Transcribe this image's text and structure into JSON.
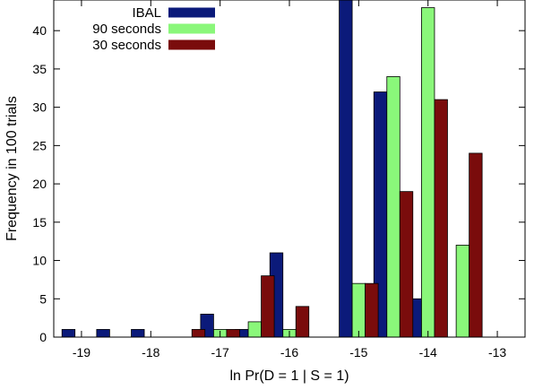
{
  "chart_data": {
    "type": "bar",
    "xlabel": "ln Pr(D = 1 | S = 1)",
    "ylabel": "Frequency in 100 trials",
    "ylim": [
      0,
      44
    ],
    "xlim": [
      -19.4,
      -12.6
    ],
    "x_ticks": [
      {
        "value": -19,
        "label": "-19"
      },
      {
        "value": -18,
        "label": "-18"
      },
      {
        "value": -17,
        "label": "-17"
      },
      {
        "value": -16,
        "label": "-16"
      },
      {
        "value": -15,
        "label": "-15"
      },
      {
        "value": -14,
        "label": "-14"
      },
      {
        "value": -13,
        "label": "-13"
      }
    ],
    "y_ticks": [
      {
        "value": 0,
        "label": "0"
      },
      {
        "value": 5,
        "label": "5"
      },
      {
        "value": 10,
        "label": "10"
      },
      {
        "value": 15,
        "label": "15"
      },
      {
        "value": 20,
        "label": "20"
      },
      {
        "value": 25,
        "label": "25"
      },
      {
        "value": 30,
        "label": "30"
      },
      {
        "value": 35,
        "label": "35"
      },
      {
        "value": 40,
        "label": "40"
      }
    ],
    "bin_centers": [
      -19.0,
      -18.5,
      -18.0,
      -17.5,
      -17.0,
      -16.5,
      -16.0,
      -15.5,
      -15.0,
      -14.5,
      -14.0,
      -13.5,
      -13.0
    ],
    "legend_position": "top-left",
    "series": [
      {
        "name": "IBAL",
        "color": "#0b1a7a",
        "values": [
          1,
          1,
          1,
          0,
          3,
          1,
          11,
          0,
          44,
          32,
          5,
          0,
          0
        ]
      },
      {
        "name": "90 seconds",
        "color": "#8af77a",
        "values": [
          0,
          0,
          0,
          0,
          1,
          2,
          1,
          0,
          7,
          34,
          43,
          12,
          0
        ]
      },
      {
        "name": "30 seconds",
        "color": "#7a0c0c",
        "values": [
          0,
          0,
          0,
          1,
          1,
          8,
          4,
          0,
          7,
          19,
          31,
          24,
          0
        ]
      }
    ]
  }
}
